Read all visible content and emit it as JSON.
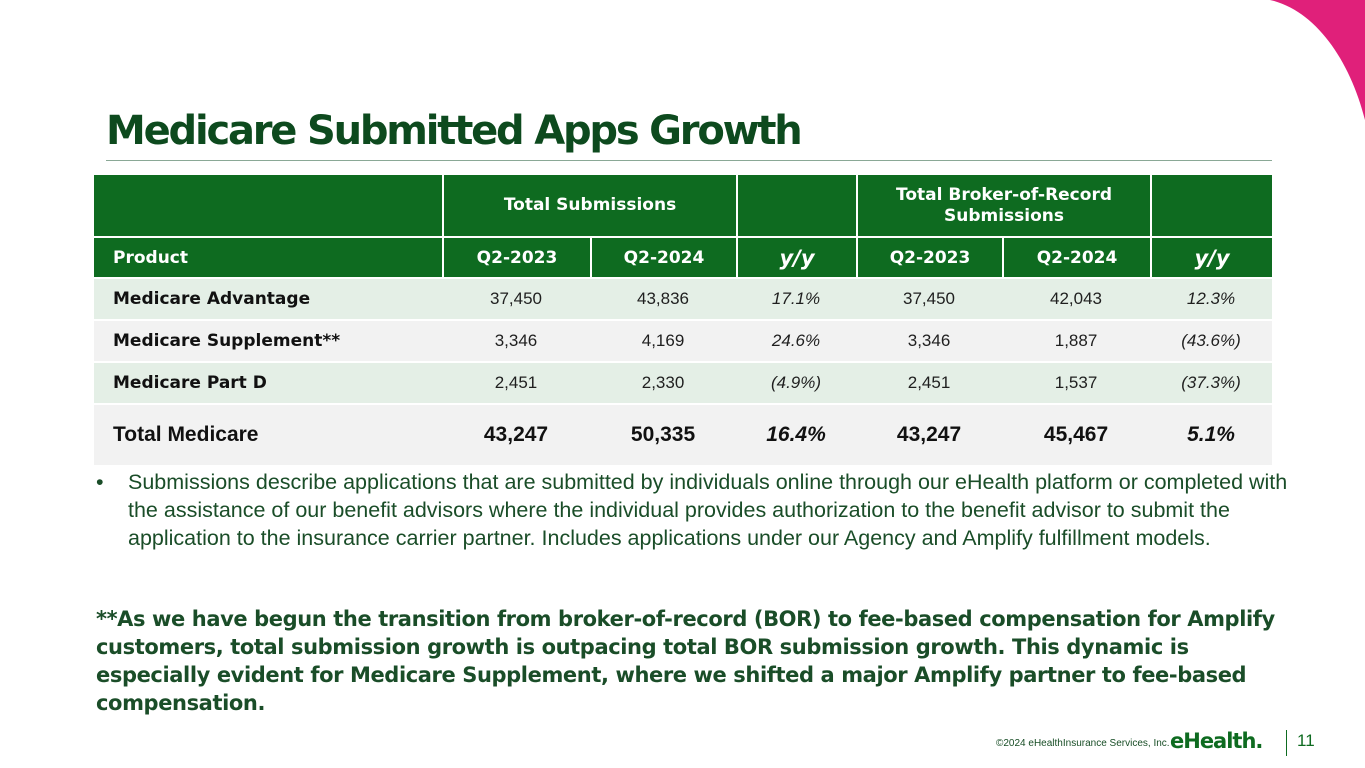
{
  "slide": {
    "title": "Medicare Submitted Apps Growth",
    "colors": {
      "accent_green": "#0e6b20",
      "dark_green": "#0d4a1e",
      "magenta": "#e0207a"
    }
  },
  "table": {
    "group_headers": {
      "blank": "",
      "total_submissions": "Total Submissions",
      "total_bor": "Total Broker-of-Record Submissions"
    },
    "columns": [
      "Product",
      "Q2-2023",
      "Q2-2024",
      "y/y",
      "Q2-2023",
      "Q2-2024",
      "y/y"
    ],
    "rows": [
      [
        "Medicare Advantage",
        "37,450",
        "43,836",
        "17.1%",
        "37,450",
        "42,043",
        "12.3%"
      ],
      [
        "Medicare Supplement**",
        "3,346",
        "4,169",
        "24.6%",
        "3,346",
        "1,887",
        "(43.6%)"
      ],
      [
        "Medicare Part D",
        "2,451",
        "2,330",
        "(4.9%)",
        "2,451",
        "1,537",
        "(37.3%)"
      ],
      [
        "Total Medicare",
        "43,247",
        "50,335",
        "16.4%",
        "43,247",
        "45,467",
        "5.1%"
      ]
    ]
  },
  "bullet": {
    "marker": "•",
    "text": "Submissions describe applications that are submitted by individuals online through our eHealth platform or completed with the assistance of our benefit advisors where the individual provides authorization to the benefit advisor to submit the application to the insurance carrier partner. Includes applications under our Agency and Amplify fulfillment models."
  },
  "note": "**As we have begun the transition from broker-of-record (BOR) to fee-based compensation for Amplify customers, total submission growth is outpacing total BOR submission growth. This dynamic is especially evident for Medicare Supplement, where we shifted a major Amplify partner to fee-based compensation.",
  "footer": {
    "copyright": "©2024 eHealthInsurance Services, Inc.",
    "logo": "eHealth.",
    "page": "11"
  }
}
